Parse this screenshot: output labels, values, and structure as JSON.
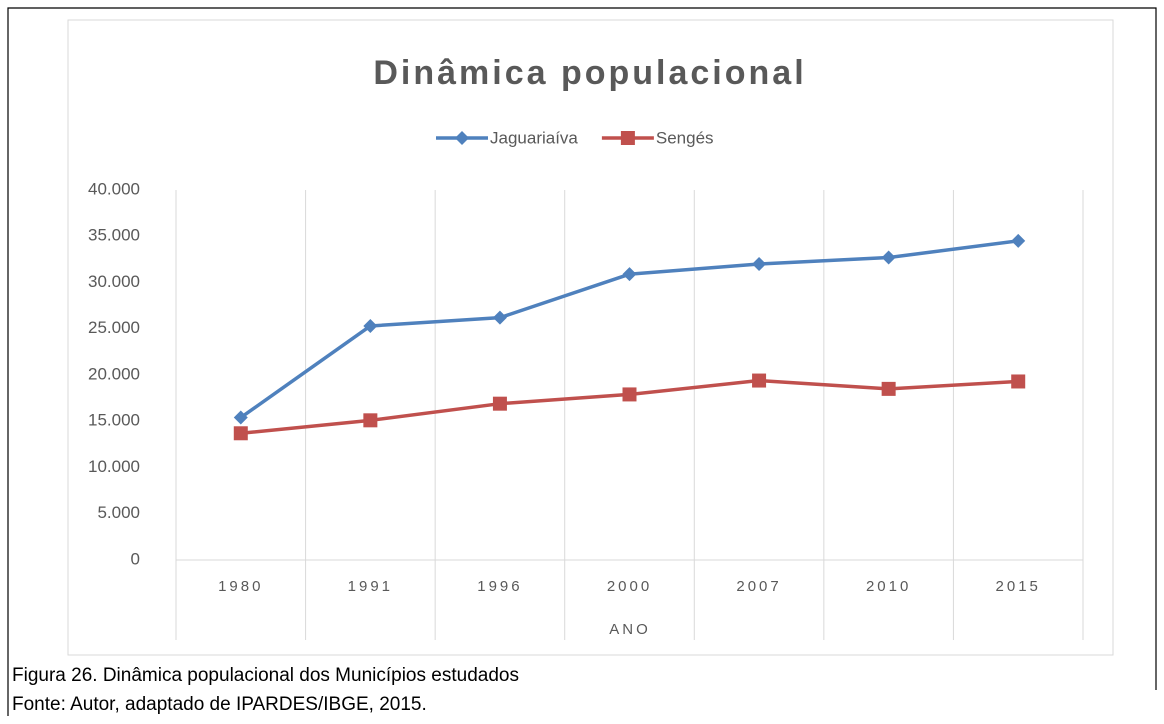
{
  "chart_data": {
    "type": "line",
    "title": "Dinâmica populacional",
    "categories": [
      "1980",
      "1991",
      "1996",
      "2000",
      "2007",
      "2010",
      "2015"
    ],
    "x_label": "ANO",
    "series": [
      {
        "name": "Jaguariaíva",
        "color": "#4f81bd",
        "marker": "diamond",
        "values": [
          15400,
          25300,
          26200,
          30900,
          32000,
          32700,
          34500
        ]
      },
      {
        "name": "Sengés",
        "color": "#c0504d",
        "marker": "square",
        "values": [
          13700,
          15100,
          16900,
          17900,
          19400,
          18500,
          19300
        ]
      }
    ],
    "ylim": [
      0,
      40000
    ],
    "yticks": [
      0,
      {
        "value": 5000,
        "label": "5.000"
      },
      {
        "value": 10000,
        "label": "10.000"
      },
      {
        "value": 15000,
        "label": "15.000"
      },
      {
        "value": 20000,
        "label": "20.000"
      },
      {
        "value": 25000,
        "label": "25.000"
      },
      {
        "value": 30000,
        "label": "30.000"
      },
      {
        "value": 35000,
        "label": "35.000"
      },
      {
        "value": 40000,
        "label": "40.000"
      }
    ],
    "grid": "x",
    "legend": "top"
  },
  "caption": {
    "figure": "Figura 26.  Dinâmica populacional dos Municípios estudados",
    "source": "Fonte: Autor, adaptado de IPARDES/IBGE, 2015."
  }
}
